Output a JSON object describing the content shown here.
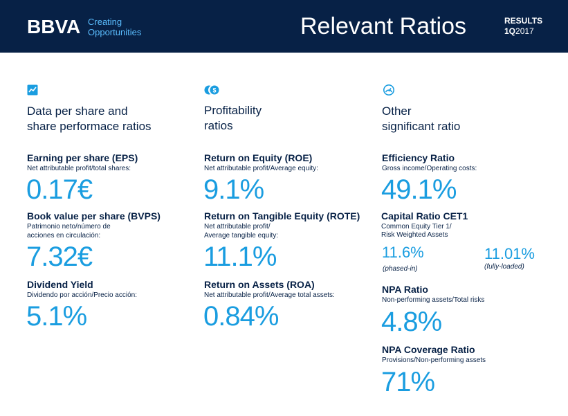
{
  "header": {
    "logo": "BBVA",
    "tagline_line1": "Creating",
    "tagline_line2": "Opportunities",
    "title": "Relevant Ratios",
    "results_label": "RESULTS",
    "period_bold": "1Q",
    "period_year": "2017"
  },
  "colors": {
    "navy": "#072146",
    "accent_light": "#5bbeff",
    "value_blue": "#1a9de0"
  },
  "columns": [
    {
      "icon": "chart-trend-icon",
      "title_line1": "Data per share and",
      "title_line2": "share performace ratios",
      "metrics": [
        {
          "label": "Earning per share (EPS)",
          "desc": "Net attributable profit/total shares:",
          "value": "0.17€"
        },
        {
          "label": "Book value per share (BVPS)",
          "desc_line1": "Patrimonio neto/número de",
          "desc_line2": "acciones en circulación:",
          "value": "7.32€"
        },
        {
          "label": "Dividend Yield",
          "desc": "Dividendo por acción/Precio acción:",
          "value": "5.1%"
        }
      ]
    },
    {
      "icon": "dollar-coins-icon",
      "title_line1": "Profitability",
      "title_line2": "ratios",
      "metrics": [
        {
          "label": "Return on Equity (ROE)",
          "desc": "Net attributable profit/Average equity:",
          "value": "9.1%"
        },
        {
          "label": "Return on Tangible Equity (ROTE)",
          "desc_line1": "Net attributable profit/",
          "desc_line2": "Average tangible equity:",
          "value": "11.1%"
        },
        {
          "label": "Return on Assets (ROA)",
          "desc": "Net attributable profit/Average total assets:",
          "value": "0.84%"
        }
      ]
    },
    {
      "icon": "gauge-icon",
      "title_line1": "Other",
      "title_line2": "significant ratio",
      "metrics": [
        {
          "label": "Efficiency Ratio",
          "desc": "Gross income/Operating costs:",
          "value": "49.1%"
        },
        {
          "label": "Capital Ratio CET1",
          "desc_line1": "Common Equity Tier 1/",
          "desc_line2": "Risk Weighted Assets",
          "value_a": "11.6%",
          "note_a": "(phased-in)",
          "value_b": "11.01%",
          "note_b": "(fully-loaded)"
        },
        {
          "label": "NPA Ratio",
          "desc": "Non-performing assets/Total risks",
          "value": "4.8%"
        },
        {
          "label": "NPA Coverage Ratio",
          "desc": "Provisions/Non-performing assets",
          "value": "71%"
        }
      ]
    }
  ]
}
